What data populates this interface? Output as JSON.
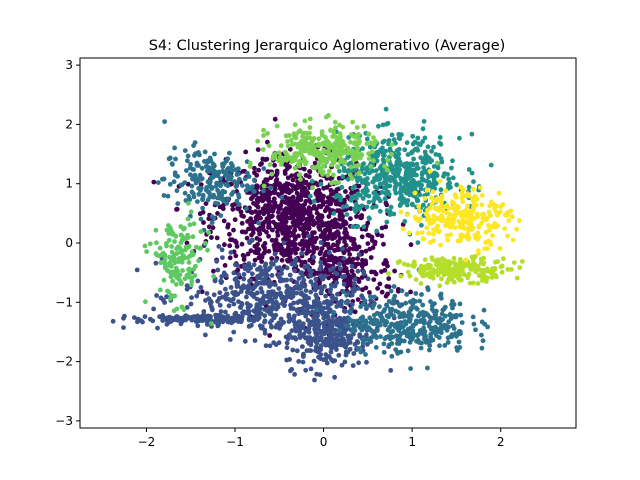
{
  "chart_data": {
    "type": "scatter",
    "title": "S4: Clustering Jerarquico Aglomerativo (Average)",
    "xlabel": "",
    "ylabel": "",
    "xlim": [
      -2.75,
      2.85
    ],
    "ylim": [
      -3.12,
      3.12
    ],
    "xticks": [
      -2,
      -1,
      0,
      1,
      2
    ],
    "yticks": [
      -3,
      -2,
      -1,
      0,
      1,
      2,
      3
    ],
    "grid": false,
    "legend": "none",
    "clusters": [
      {
        "color": "#440154",
        "center": [
          -0.35,
          0.45
        ],
        "spread": [
          0.45,
          0.5
        ],
        "count": 900
      },
      {
        "color": "#440154",
        "center": [
          0.2,
          -0.45
        ],
        "spread": [
          0.3,
          0.35
        ],
        "count": 250
      },
      {
        "color": "#3b528b",
        "center": [
          -0.6,
          -0.9
        ],
        "spread": [
          0.5,
          0.35
        ],
        "count": 500
      },
      {
        "color": "#3b528b",
        "center": [
          0.05,
          -1.5
        ],
        "spread": [
          0.25,
          0.3
        ],
        "count": 300
      },
      {
        "color": "#3b528b",
        "center": [
          -1.4,
          -1.28
        ],
        "spread": [
          0.35,
          0.03
        ],
        "count": 120
      },
      {
        "color": "#2c728e",
        "center": [
          -1.3,
          1.05
        ],
        "spread": [
          0.25,
          0.28
        ],
        "count": 200
      },
      {
        "color": "#2c728e",
        "center": [
          0.95,
          -1.35
        ],
        "spread": [
          0.35,
          0.25
        ],
        "count": 350
      },
      {
        "color": "#21918c",
        "center": [
          0.85,
          1.1
        ],
        "spread": [
          0.35,
          0.35
        ],
        "count": 500
      },
      {
        "color": "#5ec962",
        "center": [
          -1.65,
          -0.3
        ],
        "spread": [
          0.15,
          0.35
        ],
        "count": 150
      },
      {
        "color": "#7ad151",
        "center": [
          0.0,
          1.55
        ],
        "spread": [
          0.3,
          0.22
        ],
        "count": 300
      },
      {
        "color": "#b5de2b",
        "center": [
          1.5,
          -0.45
        ],
        "spread": [
          0.3,
          0.1
        ],
        "count": 200
      },
      {
        "color": "#fde725",
        "center": [
          1.55,
          0.45
        ],
        "spread": [
          0.28,
          0.25
        ],
        "count": 250
      }
    ]
  }
}
